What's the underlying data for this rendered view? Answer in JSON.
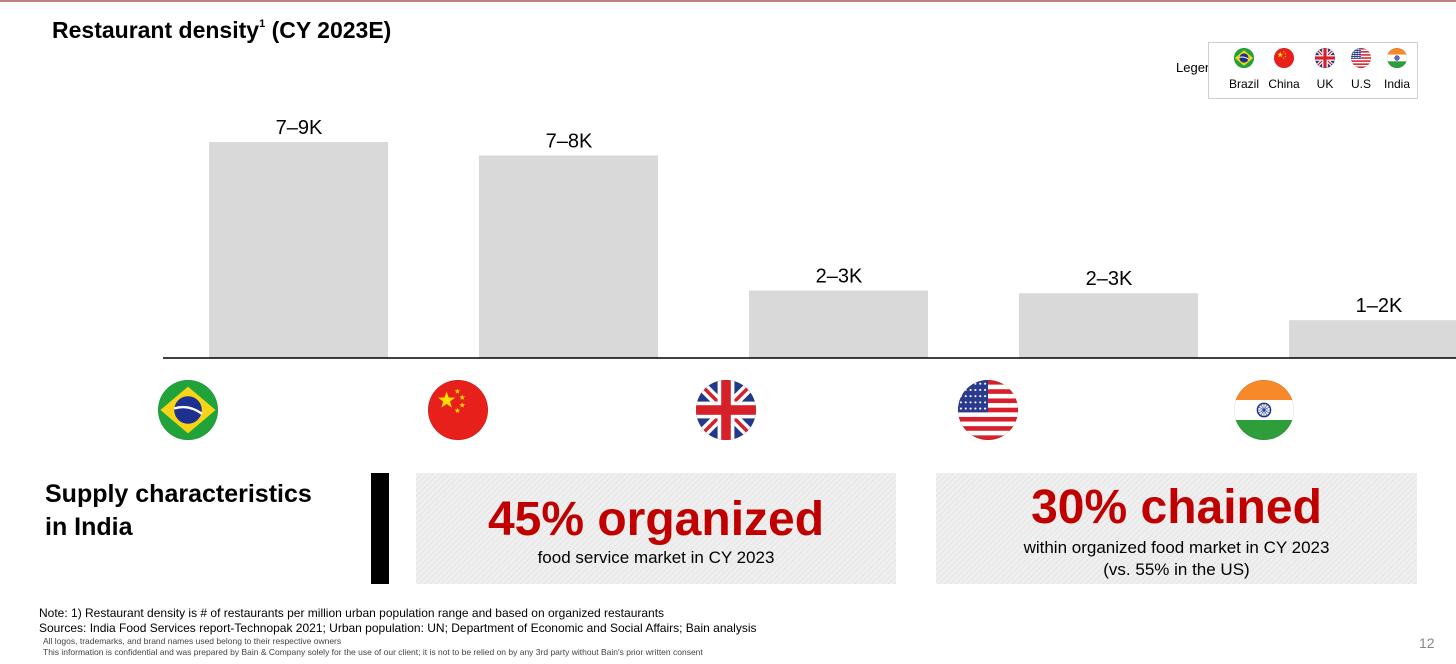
{
  "title": {
    "main": "Restaurant density",
    "superscript": "1",
    "suffix": " (CY 2023E)"
  },
  "legend": {
    "title": "Legend",
    "items": [
      {
        "label": "Brazil",
        "icon": "brazil-flag-icon"
      },
      {
        "label": "China",
        "icon": "china-flag-icon"
      },
      {
        "label": "UK",
        "icon": "uk-flag-icon"
      },
      {
        "label": "U.S",
        "icon": "us-flag-icon"
      },
      {
        "label": "India",
        "icon": "india-flag-icon"
      }
    ]
  },
  "chart_data": {
    "type": "bar",
    "title": "Restaurant density1 (CY 2023E)",
    "categories": [
      "Brazil",
      "China",
      "UK",
      "U.S",
      "India"
    ],
    "values": [
      8,
      7.5,
      2.5,
      2.4,
      1.4
    ],
    "data_labels": [
      "7–9K",
      "7–8K",
      "2–3K",
      "2–3K",
      "1–2K"
    ],
    "category_icons": [
      "brazil-flag-icon",
      "china-flag-icon",
      "uk-flag-icon",
      "us-flag-icon",
      "india-flag-icon"
    ],
    "ylim": [
      0,
      9
    ],
    "grid": false,
    "legend_position": "top-right",
    "bar_color": "#d9d9d9"
  },
  "supply": {
    "title_line1": "Supply characteristics",
    "title_line2": "in India"
  },
  "cards": [
    {
      "big": "45% organized",
      "sub_line1": "food service market in CY 2023",
      "sub_line2": ""
    },
    {
      "big": "30% chained",
      "sub_line1": "within organized food market in CY 2023",
      "sub_line2": "(vs. 55% in the US)"
    }
  ],
  "colors": {
    "accent_red": "#c00000",
    "bar_gray": "#d9d9d9"
  },
  "footnotes": {
    "note": "Note: 1) Restaurant density is # of restaurants per million urban population range and based on organized restaurants",
    "sources": "Sources: India Food Services report-Technopak 2021; Urban population: UN; Department of Economic and Social Affairs; Bain analysis",
    "logos": "All logos, trademarks, and brand names used belong to their respective owners",
    "confidential": "This information is confidential and was prepared by Bain & Company solely for the use of our client; it is not to be relied on by any 3rd party without Bain's prior written consent"
  },
  "page_number": "12"
}
